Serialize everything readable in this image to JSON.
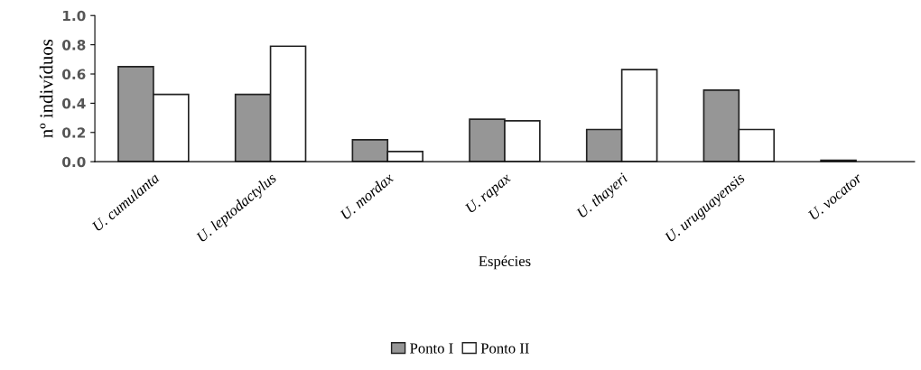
{
  "chart_data": {
    "type": "bar",
    "xlabel": "Espécies",
    "ylabel": "nº indivíduos",
    "categories": [
      "U. cumulanta",
      "U. leptodactylus",
      "U. mordax",
      "U. rapax",
      "U. thayeri",
      "U. uruguayensis",
      "U. vocator"
    ],
    "series": [
      {
        "name": "Ponto I",
        "color": "#969696",
        "values": [
          0.65,
          0.46,
          0.15,
          0.29,
          0.22,
          0.49,
          0.01
        ]
      },
      {
        "name": "Ponto II",
        "color": "#ffffff",
        "values": [
          0.46,
          0.79,
          0.07,
          0.28,
          0.63,
          0.22,
          0
        ]
      }
    ],
    "ylim": [
      0,
      1.0
    ],
    "yticks": [
      {
        "value": 0,
        "label": "0.0"
      },
      {
        "value": 0.2,
        "label": "0.2"
      },
      {
        "value": 0.4,
        "label": "0.4"
      },
      {
        "value": 0.6,
        "label": "0.6"
      },
      {
        "value": 0.8,
        "label": "0.8"
      },
      {
        "value": 1.0,
        "label": "1.0"
      }
    ],
    "grid": false,
    "legend": "bottom"
  }
}
